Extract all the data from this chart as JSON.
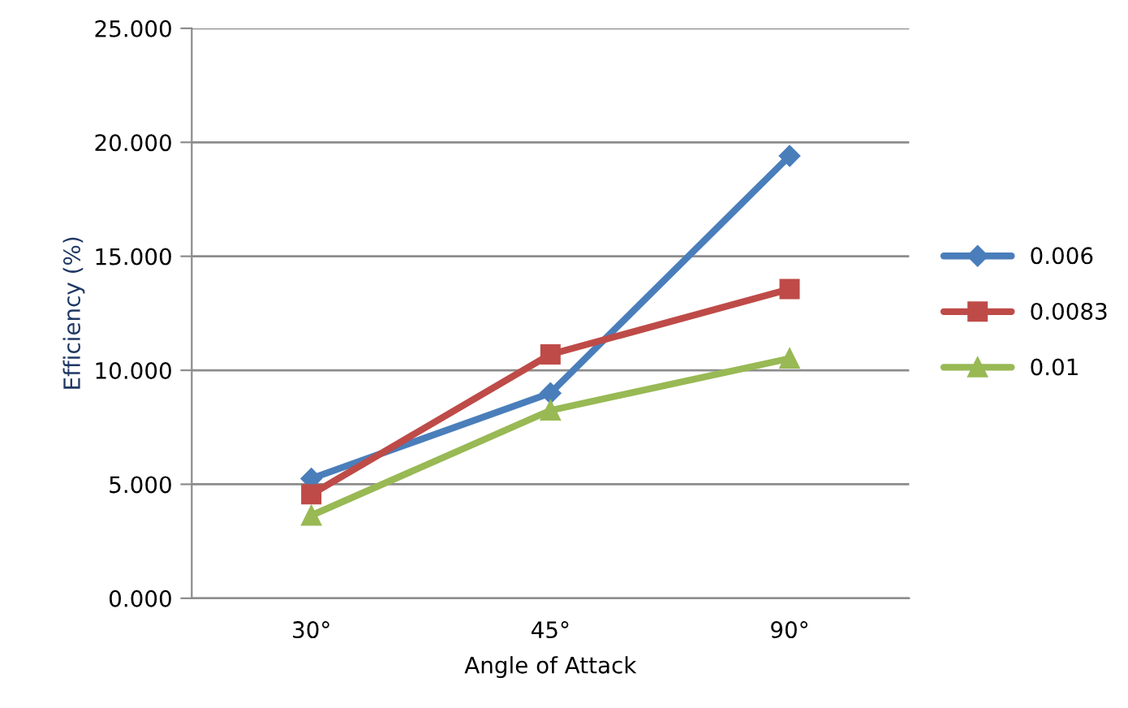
{
  "chart_data": {
    "type": "line",
    "xlabel": "Angle of Attack",
    "ylabel": "Efficiency (%)",
    "categories": [
      "30°",
      "45°",
      "90°"
    ],
    "series": [
      {
        "name": "0.006",
        "color": "#4a7ebb",
        "marker": "diamond",
        "values": [
          5.25,
          9.0,
          19.4
        ]
      },
      {
        "name": "0.0083",
        "color": "#be4b48",
        "marker": "square",
        "values": [
          4.56,
          10.7,
          13.56
        ]
      },
      {
        "name": "0.01",
        "color": "#98b954",
        "marker": "triangle",
        "values": [
          3.63,
          8.24,
          10.52
        ]
      }
    ],
    "ylim": [
      0,
      25
    ],
    "yticks": [
      {
        "value": 0,
        "label": "0.000"
      },
      {
        "value": 5,
        "label": "5.000"
      },
      {
        "value": 10,
        "label": "10.000"
      },
      {
        "value": 15,
        "label": "15.000"
      },
      {
        "value": 20,
        "label": "20.000"
      },
      {
        "value": 25,
        "label": "25.000"
      }
    ],
    "grid": "y",
    "legend": "right"
  }
}
